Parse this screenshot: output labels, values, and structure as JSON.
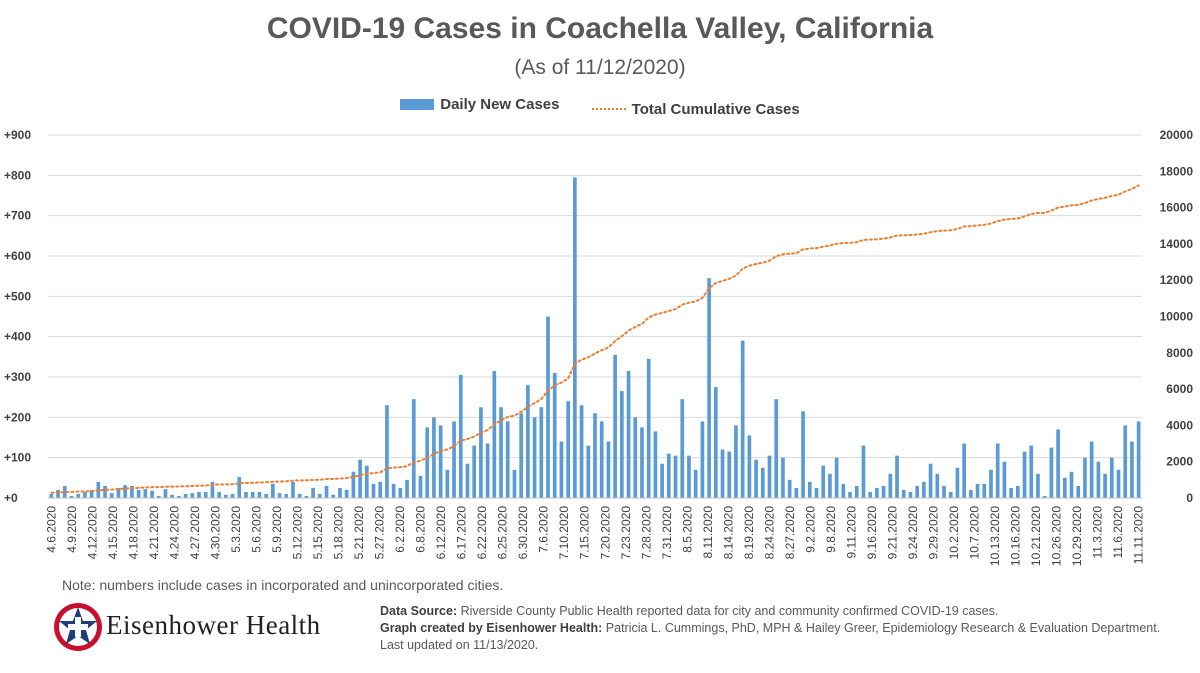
{
  "title": "COVID-19 Cases in Coachella Valley, California",
  "subtitle": "(As of 11/12/2020)",
  "legend": {
    "bar_label": "Daily New Cases",
    "line_label": "Total Cumulative Cases"
  },
  "note": "Note: numbers include cases in incorporated and unincorporated cities.",
  "logo": {
    "text": "Eisenhower Health",
    "icon": "star-cross-logo-icon"
  },
  "source": {
    "data_label": "Data Source:",
    "data_text": "Riverside County Public Health reported data for city and community confirmed COVID-19 cases.",
    "credit_label": "Graph created by Eisenhower Health:",
    "credit_text": "Patricia L. Cummings, PhD, MPH & Hailey Greer, Epidemiology Research & Evaluation Department. Last updated on 11/13/2020."
  },
  "colors": {
    "bars": "#5b9bd5",
    "line": "#ed7d31",
    "grid": "#d9d9d9",
    "axis_text": "#404040"
  },
  "chart_data": {
    "type": "bar",
    "x_tick_labels": [
      "4.6.2020",
      "4.9.2020",
      "4.12.2020",
      "4.15.2020",
      "4.18.2020",
      "4.21.2020",
      "4.24.2020",
      "4.27.2020",
      "4.30.2020",
      "5.3.2020",
      "5.6.2020",
      "5.9.2020",
      "5.12.2020",
      "5.15.2020",
      "5.18.2020",
      "5.21.2020",
      "5.27.2020",
      "6.2.2020",
      "6.8.2020",
      "6.12.2020",
      "6.17.2020",
      "6.22.2020",
      "6.25.2020",
      "6.30.2020",
      "7.6.2020",
      "7.10.2020",
      "7.15.2020",
      "7.20.2020",
      "7.23.2020",
      "7.28.2020",
      "7.31.2020",
      "8.5.2020",
      "8.11.2020",
      "8.14.2020",
      "8.19.2020",
      "8.24.2020",
      "8.27.2020",
      "9.2.2020",
      "9.8.2020",
      "9.11.2020",
      "9.16.2020",
      "9.21.2020",
      "9.24.2020",
      "9.29.2020",
      "10.2.2020",
      "10.7.2020",
      "10.13.2020",
      "10.16.2020",
      "10.21.2020",
      "10.26.2020",
      "10.29.2020",
      "11.3.2020",
      "11.6.2020",
      "11.11.2020"
    ],
    "y_left_ticks": [
      "+900",
      "+800",
      "+700",
      "+600",
      "+500",
      "+400",
      "+300",
      "+200",
      "+100",
      "+0"
    ],
    "y_right_ticks": [
      "20000",
      "18000",
      "16000",
      "14000",
      "12000",
      "10000",
      "8000",
      "6000",
      "4000",
      "2000",
      "0"
    ],
    "y_left_range": [
      0,
      900
    ],
    "y_right_range": [
      0,
      20000
    ],
    "grid": true,
    "legend_position": "top",
    "series": [
      {
        "name": "Daily New Cases",
        "type": "bar",
        "axis": "left",
        "values": [
          10,
          20,
          30,
          5,
          10,
          15,
          20,
          40,
          30,
          12,
          25,
          32,
          30,
          20,
          22,
          18,
          5,
          22,
          8,
          5,
          10,
          12,
          15,
          15,
          40,
          15,
          8,
          10,
          52,
          15,
          15,
          15,
          10,
          35,
          12,
          10,
          40,
          10,
          5,
          25,
          10,
          30,
          8,
          25,
          20,
          65,
          95,
          80,
          35,
          40,
          230,
          35,
          25,
          45,
          245,
          55,
          175,
          200,
          180,
          70,
          190,
          305,
          85,
          130,
          225,
          135,
          315,
          225,
          190,
          70,
          210,
          280,
          200,
          225,
          450,
          310,
          140,
          240,
          795,
          230,
          130,
          210,
          190,
          140,
          355,
          265,
          315,
          200,
          175,
          345,
          165,
          85,
          110,
          105,
          245,
          105,
          70,
          190,
          545,
          275,
          120,
          115,
          180,
          390,
          155,
          95,
          75,
          105,
          245,
          100,
          45,
          25,
          215,
          40,
          25,
          80,
          60,
          100,
          35,
          15,
          30,
          130,
          15,
          25,
          30,
          60,
          105,
          20,
          15,
          30,
          40,
          85,
          60,
          30,
          15,
          75,
          135,
          20,
          35,
          35,
          70,
          135,
          90,
          25,
          30,
          115,
          130,
          60,
          5,
          125,
          170,
          50,
          65,
          30,
          100,
          140,
          90,
          60,
          100,
          70,
          180,
          140,
          190
        ]
      },
      {
        "name": "Total Cumulative Cases",
        "type": "line",
        "axis": "right",
        "values": [
          290,
          310,
          330,
          340,
          350,
          365,
          380,
          420,
          450,
          465,
          490,
          520,
          540,
          560,
          580,
          595,
          600,
          620,
          630,
          635,
          645,
          660,
          675,
          690,
          730,
          745,
          750,
          760,
          810,
          825,
          840,
          855,
          865,
          900,
          910,
          920,
          960,
          970,
          975,
          1000,
          1010,
          1040,
          1050,
          1075,
          1095,
          1160,
          1255,
          1335,
          1370,
          1410,
          1640,
          1675,
          1700,
          1745,
          1990,
          2045,
          2220,
          2420,
          2600,
          2670,
          2860,
          3165,
          3250,
          3380,
          3605,
          3740,
          4055,
          4280,
          4470,
          4540,
          4750,
          5030,
          5230,
          5455,
          5905,
          6215,
          6355,
          6595,
          7390,
          7620,
          7750,
          7960,
          8150,
          8290,
          8645,
          8910,
          9225,
          9425,
          9600,
          9945,
          10110,
          10195,
          10305,
          10410,
          10655,
          10760,
          10830,
          11020,
          11565,
          11840,
          11960,
          12075,
          12255,
          12645,
          12800,
          12895,
          12970,
          13075,
          13320,
          13420,
          13465,
          13490,
          13705,
          13745,
          13770,
          13850,
          13910,
          14010,
          14045,
          14060,
          14090,
          14220,
          14235,
          14260,
          14290,
          14350,
          14455,
          14475,
          14490,
          14520,
          14560,
          14645,
          14705,
          14735,
          14750,
          14825,
          14960,
          14980,
          15015,
          15050,
          15120,
          15255,
          15345,
          15370,
          15400,
          15515,
          15645,
          15705,
          15710,
          15835,
          16005,
          16055,
          16120,
          16150,
          16250,
          16390,
          16480,
          16540,
          16640,
          16710,
          16890,
          17030,
          17220
        ]
      }
    ]
  }
}
